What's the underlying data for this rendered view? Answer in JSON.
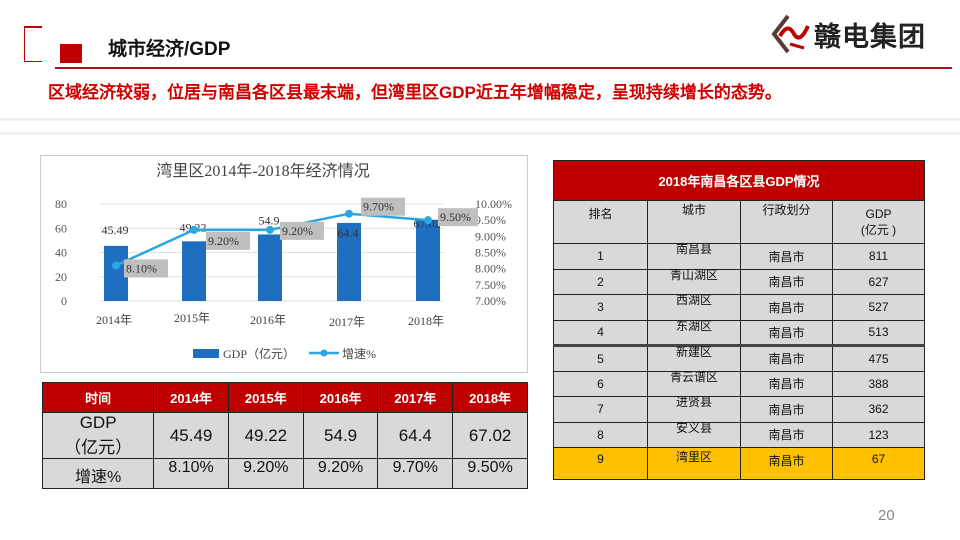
{
  "header": {
    "title": "城市经济/GDP",
    "logo_text": "赣电集团",
    "subtitle": "区域经济较弱，位居与南昌各区县最末端，但湾里区GDP近五年增幅稳定，呈现持续增长的态势。"
  },
  "chart_data": {
    "type": "bar+line",
    "title": "湾里区2014年-2018年经济情况",
    "categories": [
      "2014年",
      "2015年",
      "2016年",
      "2017年",
      "2018年"
    ],
    "series": [
      {
        "name": "GDP（亿元）",
        "type": "bar",
        "axis": "left",
        "values": [
          45.49,
          49.22,
          54.9,
          64.4,
          67.02
        ],
        "labels": [
          "45.49",
          "49.22",
          "54.9",
          "64.4",
          "67.02"
        ],
        "color": "#1f6fc0"
      },
      {
        "name": "增速%",
        "type": "line",
        "axis": "right",
        "values": [
          8.1,
          9.2,
          9.2,
          9.7,
          9.5
        ],
        "labels": [
          "8.10%",
          "9.20%",
          "9.20%",
          "9.70%",
          "9.50%"
        ],
        "color": "#2aa7e0"
      }
    ],
    "left_axis": {
      "ylim": [
        0,
        80
      ],
      "ticks": [
        "0",
        "20",
        "40",
        "60",
        "80"
      ]
    },
    "right_axis": {
      "ylim": [
        7.0,
        10.0
      ],
      "ticks": [
        "7.00%",
        "7.50%",
        "8.00%",
        "8.50%",
        "9.00%",
        "9.50%",
        "10.00%"
      ]
    },
    "grid": true,
    "legend": "bottom"
  },
  "left_table": {
    "headers": [
      "时间",
      "2014年",
      "2015年",
      "2016年",
      "2017年",
      "2018年"
    ],
    "gdp_label": "GDP（亿元）",
    "gdp_label_lines": [
      "GDP",
      "（亿元）"
    ],
    "gdp": [
      "45.49",
      "49.22",
      "54.9",
      "64.4",
      "67.02"
    ],
    "rate_label": "增速%",
    "rate": [
      "8.10%",
      "9.20%",
      "9.20%",
      "9.70%",
      "9.50%"
    ]
  },
  "right_table": {
    "caption": "2018年南昌各区县GDP情况",
    "headers": [
      "排名",
      "城市",
      "行政划分",
      "GDP（亿元）"
    ],
    "gdp_header_lines": [
      "GDP",
      "(亿元 )"
    ],
    "rows": [
      {
        "rank": "1",
        "city": "南昌县",
        "admin": "南昌市",
        "gdp": "811"
      },
      {
        "rank": "2",
        "city": "青山湖区",
        "admin": "南昌市",
        "gdp": "627"
      },
      {
        "rank": "3",
        "city": "西湖区",
        "admin": "南昌市",
        "gdp": "527"
      },
      {
        "rank": "4",
        "city": "东湖区",
        "admin": "南昌市",
        "gdp": "513"
      },
      {
        "rank": "5",
        "city": "新建区",
        "admin": "南昌市",
        "gdp": "475"
      },
      {
        "rank": "6",
        "city": "青云谱区",
        "admin": "南昌市",
        "gdp": "388"
      },
      {
        "rank": "7",
        "city": "进贤县",
        "admin": "南昌市",
        "gdp": "362"
      },
      {
        "rank": "8",
        "city": "安义县",
        "admin": "南昌市",
        "gdp": "123"
      },
      {
        "rank": "9",
        "city": "湾里区",
        "admin": "南昌市",
        "gdp": "67",
        "highlight": true
      }
    ],
    "highlight_color": "#ffc000"
  },
  "page_number": "20"
}
